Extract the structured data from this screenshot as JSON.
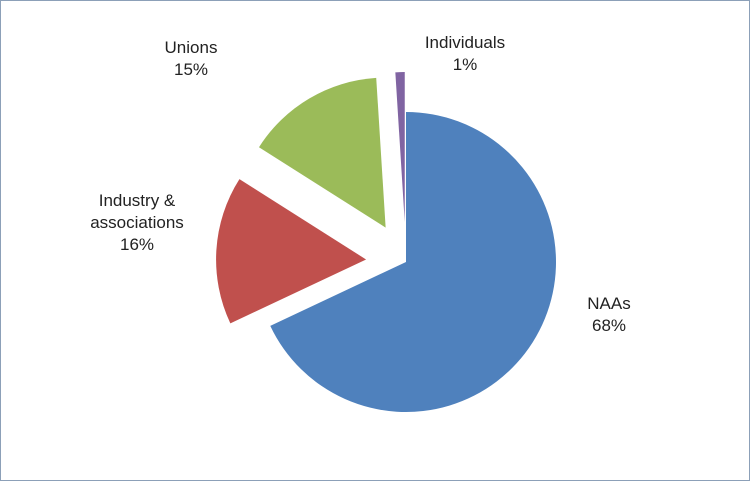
{
  "chart_data": {
    "type": "pie",
    "exploded": true,
    "start_angle_deg": 0,
    "direction": "clockwise",
    "slices": [
      {
        "id": "naas",
        "label": "NAAs",
        "percent_label": "68%",
        "value": 68,
        "color": "#4f81bd",
        "explode": 0
      },
      {
        "id": "industry",
        "label": "Industry &\nassociations",
        "percent_label": "16%",
        "value": 16,
        "color": "#c0504d",
        "explode": 1
      },
      {
        "id": "unions",
        "label": "Unions",
        "percent_label": "15%",
        "value": 15,
        "color": "#9bbb59",
        "explode": 1
      },
      {
        "id": "individuals",
        "label": "Individuals",
        "percent_label": "1%",
        "value": 1,
        "color": "#8064a2",
        "explode": 1
      }
    ]
  }
}
